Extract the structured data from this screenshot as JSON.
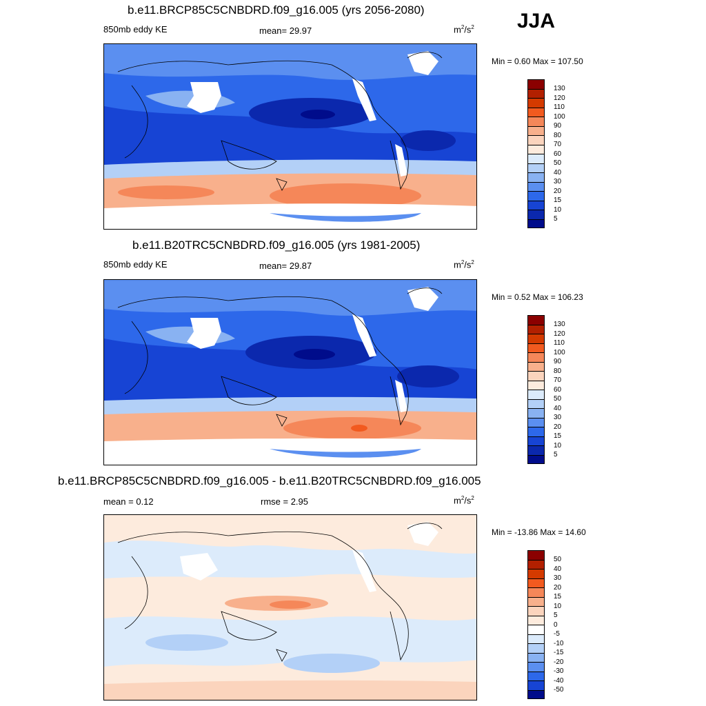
{
  "season": "JJA",
  "panels": [
    {
      "title": "b.e11.BRCP85C5CNBDRD.f09_g16.005 (yrs 2056-2080)",
      "left_label": "850mb eddy KE",
      "center_label": "mean=  29.97",
      "units": "m2/s2",
      "minmax": "Min =   0.60 Max = 107.50",
      "colorbar_labels": [
        "130",
        "120",
        "110",
        "100",
        "90",
        "80",
        "70",
        "60",
        "50",
        "40",
        "30",
        "20",
        "15",
        "10",
        "5"
      ],
      "colors": [
        "#8b0000",
        "#b22000",
        "#d43a00",
        "#f25a1f",
        "#f58759",
        "#f8b08c",
        "#fbd4bd",
        "#fdebdd",
        "#dcebfb",
        "#b3d0f7",
        "#89b2f2",
        "#5b8ff0",
        "#2d68ea",
        "#1744d4",
        "#0b28ad",
        "#000c8b"
      ]
    },
    {
      "title": "b.e11.B20TRC5CNBDRD.f09_g16.005 (yrs 1981-2005)",
      "left_label": "850mb eddy KE",
      "center_label": "mean=  29.87",
      "units": "m2/s2",
      "minmax": "Min =   0.52 Max = 106.23",
      "colorbar_labels": [
        "130",
        "120",
        "110",
        "100",
        "90",
        "80",
        "70",
        "60",
        "50",
        "40",
        "30",
        "20",
        "15",
        "10",
        "5"
      ],
      "colors": [
        "#8b0000",
        "#b22000",
        "#d43a00",
        "#f25a1f",
        "#f58759",
        "#f8b08c",
        "#fbd4bd",
        "#fdebdd",
        "#dcebfb",
        "#b3d0f7",
        "#89b2f2",
        "#5b8ff0",
        "#2d68ea",
        "#1744d4",
        "#0b28ad",
        "#000c8b"
      ]
    },
    {
      "title": "b.e11.BRCP85C5CNBDRD.f09_g16.005 - b.e11.B20TRC5CNBDRD.f09_g16.005",
      "left_label": "mean =   0.12",
      "center_label": "rmse =   2.95",
      "units": "m2/s2",
      "minmax": "Min = -13.86 Max =  14.60",
      "colorbar_labels": [
        "50",
        "40",
        "30",
        "20",
        "15",
        "10",
        "5",
        "0",
        "-5",
        "-10",
        "-15",
        "-20",
        "-30",
        "-40",
        "-50"
      ],
      "colors": [
        "#8b0000",
        "#b22000",
        "#d43a00",
        "#f25a1f",
        "#f58759",
        "#f8b08c",
        "#fbd4bd",
        "#fdebdd",
        "#ffffff",
        "#dcebfb",
        "#b3d0f7",
        "#89b2f2",
        "#5b8ff0",
        "#2d68ea",
        "#1744d4",
        "#000c8b"
      ]
    }
  ]
}
